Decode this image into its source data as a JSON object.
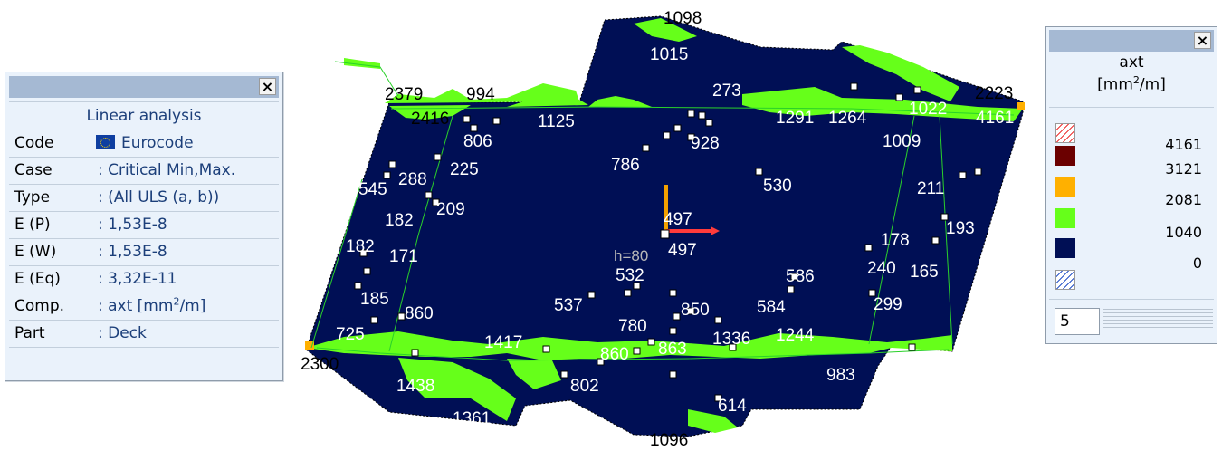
{
  "info_panel": {
    "close_label": "×",
    "heading": "Linear analysis",
    "rows": [
      {
        "label": "Code",
        "value": "Eurocode"
      },
      {
        "label": "Case",
        "value": ": Critical Min,Max."
      },
      {
        "label": "Type",
        "value": ": (All ULS  (a, b))"
      },
      {
        "label": "E (P)",
        "value": ": 1,53E-8"
      },
      {
        "label": "E (W)",
        "value": ": 1,53E-8"
      },
      {
        "label": "E (Eq)",
        "value": ": 3,32E-11"
      },
      {
        "label": "Comp.",
        "value_prefix": ": axt [mm",
        "value_sup": "2",
        "value_suffix": "/m]"
      },
      {
        "label": "Part",
        "value": ": Deck"
      }
    ],
    "code_flag_icon": "eu-flag-icon"
  },
  "legend": {
    "close_label": "×",
    "title": "axt",
    "unit_prefix": "[mm",
    "unit_sup": "2",
    "unit_suffix": "/m]",
    "entries": [
      {
        "value": "4161",
        "color": "#6b0000"
      },
      {
        "value": "3121",
        "color": "#ffb000"
      },
      {
        "value": "2081",
        "color": "#66ff1a"
      },
      {
        "value": "1040",
        "color": "#000f55"
      },
      {
        "value": "0",
        "color": ""
      }
    ],
    "steps_value": "5",
    "colors": {
      "above_max": "hatch-red",
      "below_min": "hatch-blue"
    }
  },
  "drawing": {
    "labels": {
      "l1098": "1098",
      "l1015": "1015",
      "l2379": "2379",
      "l994": "994",
      "l2416": "2416",
      "l806": "806",
      "l928": "928",
      "l786": "786",
      "l288": "288",
      "l225": "225",
      "l545": "545",
      "l530": "530",
      "l209": "209",
      "l182a": "182",
      "l497a": "497",
      "l497b": "497",
      "l182b": "182",
      "l171": "171",
      "l532": "532",
      "l537": "537",
      "l185": "185",
      "l860a": "860",
      "l725": "725",
      "l850": "850",
      "l780": "780",
      "l586": "586",
      "l584": "584",
      "l860b": "860",
      "l863": "863",
      "l2223": "2223",
      "l4161": "4161",
      "l1022": "1022",
      "l1009": "1009",
      "l1264": "1264",
      "l211": "211",
      "l178": "178",
      "l193": "193",
      "l240": "240",
      "l165": "165",
      "l299": "299",
      "l2300": "2300",
      "l1438": "1438",
      "l1361": "1361",
      "l614": "614",
      "l983": "983",
      "l1096": "1096",
      "l1417": "1417",
      "l1336": "1336",
      "l1244": "1244",
      "l1291": "1291",
      "l1125": "1125",
      "l273": "273",
      "l802": "802",
      "lh": "h=80"
    }
  }
}
